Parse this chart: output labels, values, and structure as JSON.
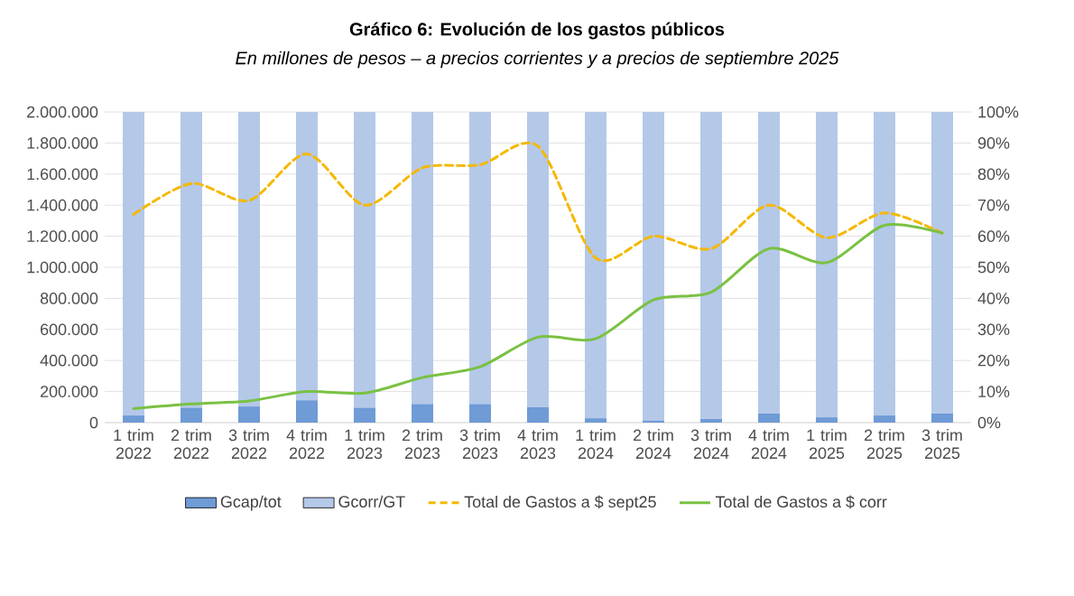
{
  "chart_data": {
    "type": "bar",
    "title": "Gráfico 6: Evolución de los gastos públicos",
    "subtitle": "En millones de pesos – a precios corrientes y a precios de septiembre 2025",
    "categories": [
      "1 trim 2022",
      "2 trim 2022",
      "3 trim 2022",
      "4 trim 2022",
      "1 trim 2023",
      "2 trim 2023",
      "3 trim 2023",
      "4 trim 2023",
      "1 trim 2024",
      "2 trim 2024",
      "3 trim 2024",
      "4 trim 2024",
      "1 trim 2025",
      "2 trim 2025",
      "3 trim 2025"
    ],
    "stacked": true,
    "grid": "y",
    "legend": "bottom",
    "series": [
      {
        "name": "Gcap/tot",
        "type": "bar",
        "axis": "y2",
        "color": "#6f9bd6",
        "values": [
          2.3,
          4.8,
          5.2,
          7.2,
          4.8,
          6,
          6,
          5,
          1.4,
          0.6,
          1.2,
          2.9,
          1.7,
          2.3,
          2.9
        ]
      },
      {
        "name": "Gcorr/GT",
        "type": "bar",
        "axis": "y2",
        "color": "#b4c8e8",
        "values": [
          97.7,
          95.2,
          94.8,
          92.8,
          95.2,
          94,
          94,
          95,
          98.6,
          99.4,
          98.8,
          97.1,
          98.3,
          97.7,
          97.1
        ]
      },
      {
        "name": "Total de Gastos a $ sept25",
        "type": "line",
        "axis": "y",
        "line_style": "dashed",
        "color": "#f5b800",
        "values": [
          1340000,
          1540000,
          1430000,
          1730000,
          1400000,
          1640000,
          1660000,
          1780000,
          1060000,
          1200000,
          1120000,
          1400000,
          1190000,
          1350000,
          1220000
        ]
      },
      {
        "name": "Total de Gastos a $ corr",
        "type": "line",
        "axis": "y",
        "line_style": "solid",
        "color": "#7ac143",
        "values": [
          90000,
          120000,
          140000,
          200000,
          190000,
          290000,
          360000,
          550000,
          540000,
          790000,
          840000,
          1120000,
          1030000,
          1270000,
          1220000
        ]
      }
    ],
    "ylim": [
      0,
      2000000
    ],
    "yticks": [
      {
        "value": 0,
        "label": "0"
      },
      {
        "value": 200000,
        "label": "200.000"
      },
      {
        "value": 400000,
        "label": "400.000"
      },
      {
        "value": 600000,
        "label": "600.000"
      },
      {
        "value": 800000,
        "label": "800.000"
      },
      {
        "value": 1000000,
        "label": "1.000.000"
      },
      {
        "value": 1200000,
        "label": "1.200.000"
      },
      {
        "value": 1400000,
        "label": "1.400.000"
      },
      {
        "value": 1600000,
        "label": "1.600.000"
      },
      {
        "value": 1800000,
        "label": "1.800.000"
      },
      {
        "value": 2000000,
        "label": "2.000.000"
      }
    ],
    "y2lim": [
      0,
      100
    ],
    "y2ticks": [
      {
        "value": 0,
        "label": "0%"
      },
      {
        "value": 10,
        "label": "10%"
      },
      {
        "value": 20,
        "label": "20%"
      },
      {
        "value": 30,
        "label": "30%"
      },
      {
        "value": 40,
        "label": "40%"
      },
      {
        "value": 50,
        "label": "50%"
      },
      {
        "value": 60,
        "label": "60%"
      },
      {
        "value": 70,
        "label": "70%"
      },
      {
        "value": 80,
        "label": "80%"
      },
      {
        "value": 90,
        "label": "90%"
      },
      {
        "value": 100,
        "label": "100%"
      }
    ]
  }
}
